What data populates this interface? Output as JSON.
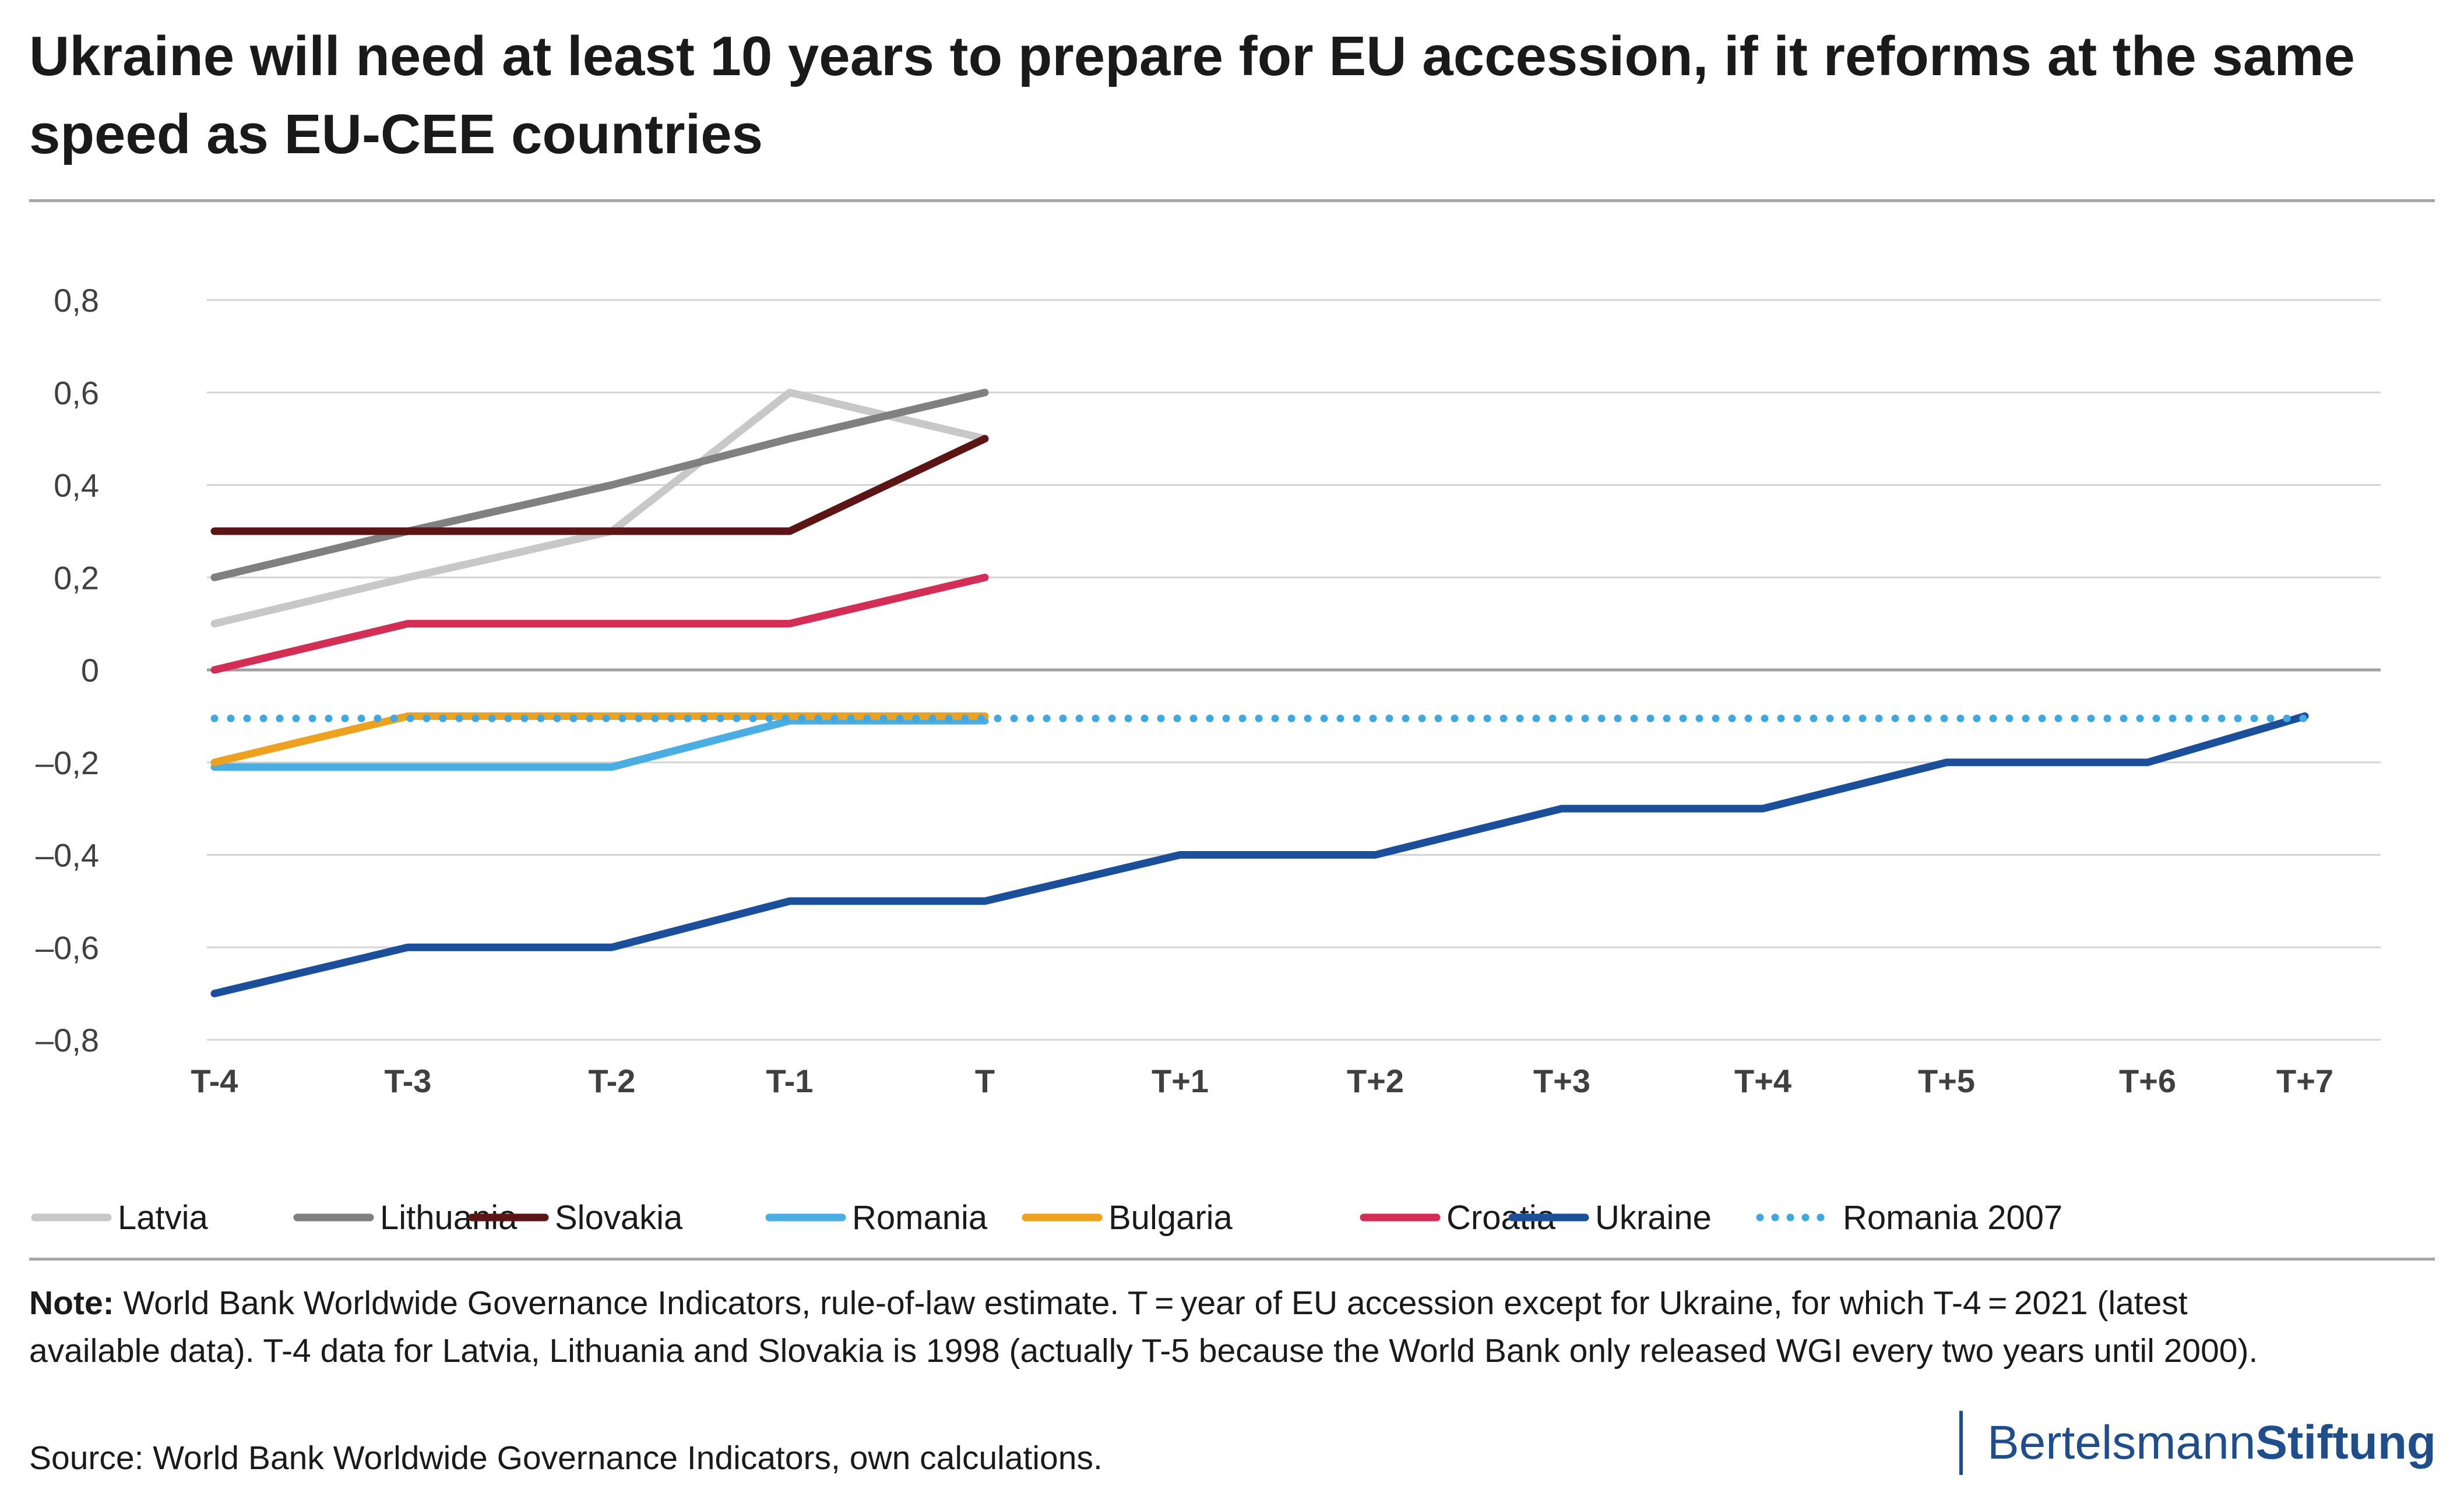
{
  "title": "Ukraine will need at least 10 years to prepare for EU accession, if it reforms at the same speed as EU-CEE countries",
  "note_label": "Note:",
  "note_text": " World Bank Worldwide Governance Indicators, rule-of-law estimate. T = year of EU accession except for Ukraine, for which T-4 = 2021 (latest available data). T-4 data for Latvia, Lithuania and Slovakia is 1998 (actually T-5 because the World Bank only released WGI every two years until 2000).",
  "source": "Source: World Bank Worldwide Governance Indicators, own calculations.",
  "brand": {
    "part1": "Bertelsmann",
    "part2": "Stiftung",
    "color": "#1f4e8c"
  },
  "chart_data": {
    "type": "line",
    "categories": [
      "T-4",
      "T-3",
      "T-2",
      "T-1",
      "T",
      "T+1",
      "T+2",
      "T+3",
      "T+4",
      "T+5",
      "T+6",
      "T+7"
    ],
    "ylim": [
      -0.8,
      0.8
    ],
    "yticks": [
      0.8,
      0.6,
      0.4,
      0.2,
      0,
      -0.2,
      -0.4,
      -0.6,
      -0.8
    ],
    "ytick_labels": [
      "0,8",
      "0,6",
      "0,4",
      "0,2",
      "0",
      "–0,2",
      "–0,4",
      "–0,6",
      "–0,8"
    ],
    "grid": true,
    "legend_position": "bottom",
    "series": [
      {
        "name": "Latvia",
        "color": "#c8c8c8",
        "style": "solid",
        "values": [
          0.1,
          0.2,
          0.3,
          0.6,
          0.5,
          null,
          null,
          null,
          null,
          null,
          null,
          null
        ]
      },
      {
        "name": "Lithuania",
        "color": "#808080",
        "style": "solid",
        "values": [
          0.2,
          0.3,
          0.4,
          0.5,
          0.6,
          null,
          null,
          null,
          null,
          null,
          null,
          null
        ]
      },
      {
        "name": "Slovakia",
        "color": "#5c1414",
        "style": "solid",
        "values": [
          0.3,
          0.3,
          0.3,
          0.3,
          0.5,
          null,
          null,
          null,
          null,
          null,
          null,
          null
        ]
      },
      {
        "name": "Romania",
        "color": "#4aaee3",
        "style": "solid",
        "values": [
          -0.21,
          -0.21,
          -0.21,
          -0.11,
          -0.11,
          null,
          null,
          null,
          null,
          null,
          null,
          null
        ]
      },
      {
        "name": "Bulgaria",
        "color": "#eea11e",
        "style": "solid",
        "values": [
          -0.2,
          -0.1,
          -0.1,
          -0.1,
          -0.1,
          null,
          null,
          null,
          null,
          null,
          null,
          null
        ]
      },
      {
        "name": "Croatia",
        "color": "#d42e56",
        "style": "solid",
        "values": [
          0.0,
          0.1,
          0.1,
          0.1,
          0.2,
          null,
          null,
          null,
          null,
          null,
          null,
          null
        ]
      },
      {
        "name": "Ukraine",
        "color": "#1b4f9c",
        "style": "solid",
        "values": [
          -0.7,
          -0.6,
          -0.6,
          -0.5,
          -0.5,
          -0.4,
          -0.4,
          -0.3,
          -0.3,
          -0.2,
          -0.2,
          -0.1
        ]
      },
      {
        "name": "Romania 2007",
        "color": "#3fa8e0",
        "style": "dotted",
        "values": [
          -0.105,
          -0.105,
          -0.105,
          -0.105,
          -0.105,
          -0.105,
          -0.105,
          -0.105,
          -0.105,
          -0.105,
          -0.105,
          -0.105
        ]
      }
    ]
  }
}
